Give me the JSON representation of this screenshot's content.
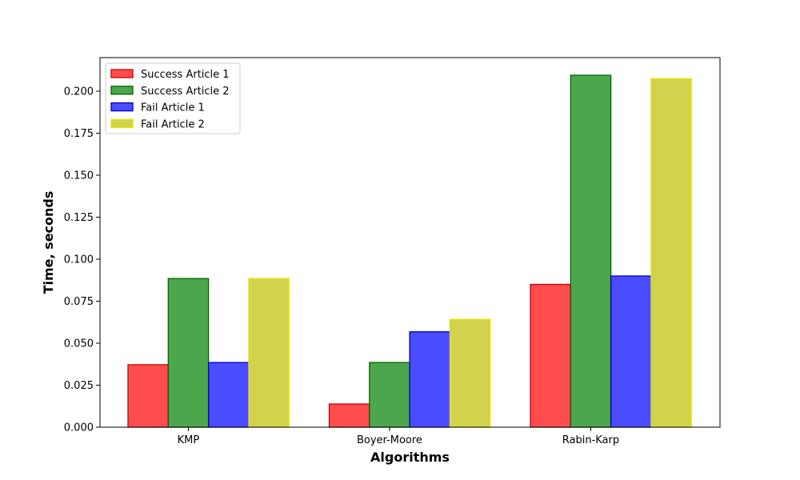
{
  "chart_data": {
    "type": "bar",
    "title": "",
    "xlabel": "Algorithms",
    "ylabel": "Time, seconds",
    "categories": [
      "KMP",
      "Boyer-Moore",
      "Rabin-Karp"
    ],
    "ylim": [
      0,
      0.22
    ],
    "yticks": [
      "0.000",
      "0.025",
      "0.050",
      "0.075",
      "0.100",
      "0.125",
      "0.150",
      "0.175",
      "0.200"
    ],
    "grid": false,
    "legend_position": "top-left",
    "series": [
      {
        "name": "Success Article 1",
        "color": "#ff0000",
        "edge": "#cc0000",
        "values": [
          0.0372,
          0.0138,
          0.085
        ]
      },
      {
        "name": "Success Article 2",
        "color": "#008000",
        "edge": "#006600",
        "values": [
          0.0885,
          0.0385,
          0.2095
        ]
      },
      {
        "name": "Fail Article 1",
        "color": "#0000ff",
        "edge": "#0000cc",
        "values": [
          0.0385,
          0.0568,
          0.09
        ]
      },
      {
        "name": "Fail Article 2",
        "color": "#bfbf00",
        "edge": "#e6e600",
        "values": [
          0.0885,
          0.0642,
          0.2075
        ]
      }
    ]
  }
}
